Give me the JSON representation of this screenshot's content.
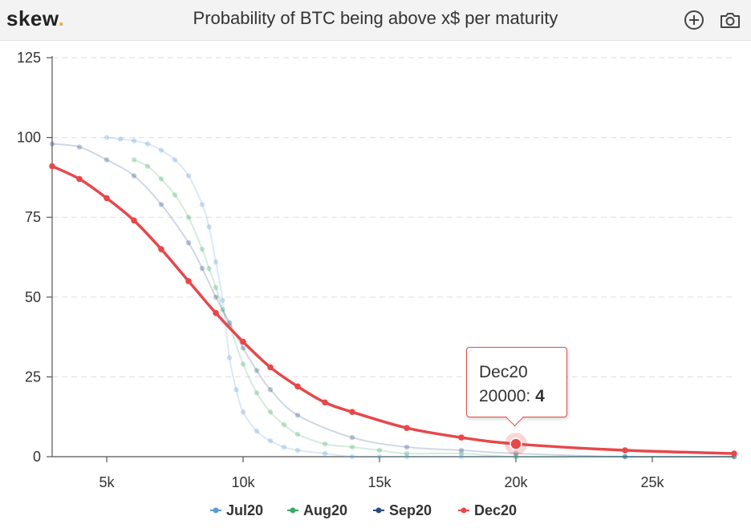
{
  "header": {
    "logo_text": "skew",
    "logo_dot": ".",
    "title": "Probability of BTC being above x$ per maturity",
    "icons": [
      "zoom-in-icon",
      "camera-icon"
    ]
  },
  "tooltip": {
    "series": "Dec20",
    "x_label": "20000",
    "value": "4"
  },
  "chart_data": {
    "type": "line",
    "title": "Probability of BTC being above x$ per maturity",
    "xlabel": "",
    "ylabel": "",
    "xlim": [
      3000,
      28000
    ],
    "ylim": [
      0,
      125
    ],
    "x_ticks": [
      5000,
      10000,
      15000,
      20000,
      25000
    ],
    "x_tick_labels": [
      "5k",
      "10k",
      "15k",
      "20k",
      "25k"
    ],
    "y_ticks": [
      0,
      25,
      50,
      75,
      100,
      125
    ],
    "y_tick_labels": [
      "0",
      "25",
      "50",
      "75",
      "100",
      "125"
    ],
    "grid": "horizontal dashed",
    "legend": "bottom-center",
    "highlighted": {
      "series": "Dec20",
      "x": 20000,
      "y": 4
    },
    "series": [
      {
        "name": "Jul20",
        "color": "#5b9bd5",
        "faded": true,
        "points": [
          [
            5000,
            100
          ],
          [
            5500,
            99.5
          ],
          [
            6000,
            99
          ],
          [
            6500,
            98
          ],
          [
            7000,
            96
          ],
          [
            7500,
            93
          ],
          [
            8000,
            88
          ],
          [
            8500,
            79
          ],
          [
            8750,
            72
          ],
          [
            9000,
            61
          ],
          [
            9250,
            49
          ],
          [
            9500,
            31
          ],
          [
            9750,
            21
          ],
          [
            10000,
            14
          ],
          [
            10500,
            8
          ],
          [
            11000,
            5
          ],
          [
            11500,
            3
          ],
          [
            12000,
            2
          ],
          [
            13000,
            1
          ],
          [
            14000,
            0
          ],
          [
            15000,
            0
          ],
          [
            16000,
            0
          ],
          [
            18000,
            0
          ],
          [
            20000,
            0
          ],
          [
            24000,
            0
          ],
          [
            28000,
            0
          ]
        ]
      },
      {
        "name": "Aug20",
        "color": "#3aa867",
        "faded": true,
        "points": [
          [
            6000,
            93
          ],
          [
            6500,
            91
          ],
          [
            7000,
            87
          ],
          [
            7500,
            82
          ],
          [
            8000,
            75
          ],
          [
            8500,
            65
          ],
          [
            8750,
            59
          ],
          [
            9000,
            53
          ],
          [
            9250,
            46
          ],
          [
            9500,
            41
          ],
          [
            10000,
            29
          ],
          [
            10500,
            20
          ],
          [
            11000,
            14
          ],
          [
            11500,
            10
          ],
          [
            12000,
            7
          ],
          [
            13000,
            4
          ],
          [
            14000,
            3
          ],
          [
            15000,
            2
          ],
          [
            16000,
            1
          ],
          [
            18000,
            1
          ],
          [
            20000,
            0
          ],
          [
            24000,
            0
          ],
          [
            28000,
            0
          ]
        ]
      },
      {
        "name": "Sep20",
        "color": "#254b7f",
        "faded": true,
        "points": [
          [
            3000,
            98
          ],
          [
            4000,
            97
          ],
          [
            5000,
            93
          ],
          [
            6000,
            88
          ],
          [
            7000,
            79
          ],
          [
            8000,
            67
          ],
          [
            8500,
            59
          ],
          [
            9000,
            50
          ],
          [
            9500,
            42
          ],
          [
            10000,
            34
          ],
          [
            10500,
            27
          ],
          [
            11000,
            21
          ],
          [
            12000,
            13
          ],
          [
            14000,
            6
          ],
          [
            16000,
            3
          ],
          [
            18000,
            2
          ],
          [
            20000,
            1
          ],
          [
            24000,
            0
          ],
          [
            28000,
            0
          ]
        ]
      },
      {
        "name": "Dec20",
        "color": "#e8474a",
        "faded": false,
        "points": [
          [
            3000,
            91
          ],
          [
            4000,
            87
          ],
          [
            5000,
            81
          ],
          [
            6000,
            74
          ],
          [
            7000,
            65
          ],
          [
            8000,
            55
          ],
          [
            9000,
            45
          ],
          [
            10000,
            36
          ],
          [
            11000,
            28
          ],
          [
            12000,
            22
          ],
          [
            13000,
            17
          ],
          [
            14000,
            14
          ],
          [
            16000,
            9
          ],
          [
            18000,
            6
          ],
          [
            20000,
            4
          ],
          [
            24000,
            2
          ],
          [
            28000,
            1
          ]
        ]
      }
    ]
  }
}
